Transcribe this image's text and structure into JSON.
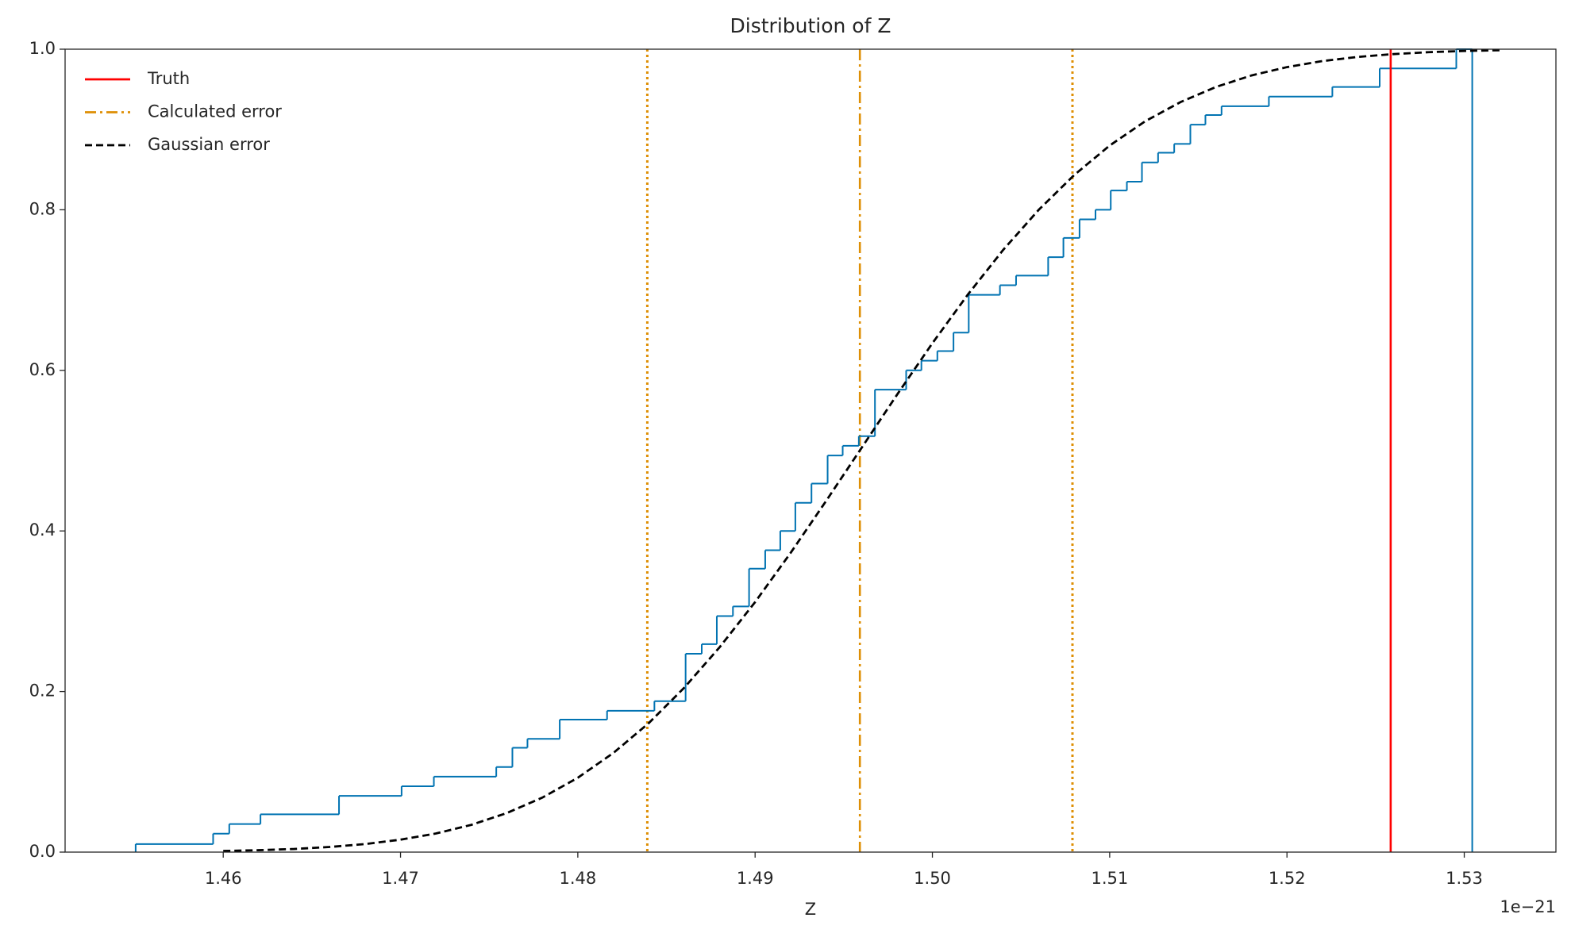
{
  "chart_data": {
    "type": "histogram",
    "title": "Distribution of Z",
    "xlabel": "Z",
    "x_offset_label": "1e−21",
    "xlim": [
      1.45108,
      1.53517
    ],
    "ylim": [
      0,
      1
    ],
    "xticks": [
      1.46,
      1.47,
      1.48,
      1.49,
      {
        "value": 1.5,
        "label": "1.50"
      },
      1.51,
      1.52,
      1.53
    ],
    "yticks": [
      {
        "value": 0,
        "label": "0.0"
      },
      0.2,
      0.4,
      0.6,
      0.8,
      {
        "value": 1,
        "label": "1.0"
      }
    ],
    "legend": "upper left",
    "histogram": {
      "color": "#0173b2",
      "bins": [
        1.45506,
        1.45943,
        1.46034,
        1.4621,
        1.46653,
        1.47006,
        1.47188,
        1.4754,
        1.47631,
        1.47716,
        1.47898,
        1.48165,
        1.48432,
        1.48608,
        1.48699,
        1.48784,
        1.48875,
        1.48966,
        1.49057,
        1.49142,
        1.49227,
        1.49318,
        1.49409,
        1.49494,
        1.49585,
        1.49676,
        1.49852,
        1.49938,
        1.50028,
        1.50119,
        1.50205,
        1.50381,
        1.50472,
        1.50653,
        1.50739,
        1.5083,
        1.5092,
        1.51006,
        1.51097,
        1.51182,
        1.51273,
        1.51364,
        1.51455,
        1.5154,
        1.51631,
        1.51898,
        1.52256,
        1.52523,
        1.52955,
        1.53045
      ],
      "values": [
        0.01,
        0.023,
        0.035,
        0.047,
        0.07,
        0.082,
        0.094,
        0.106,
        0.13,
        0.141,
        0.165,
        0.176,
        0.188,
        0.247,
        0.259,
        0.294,
        0.306,
        0.353,
        0.376,
        0.4,
        0.435,
        0.459,
        0.494,
        0.506,
        0.518,
        0.576,
        0.6,
        0.612,
        0.624,
        0.647,
        0.694,
        0.706,
        0.718,
        0.741,
        0.765,
        0.788,
        0.8,
        0.824,
        0.835,
        0.859,
        0.871,
        0.882,
        0.906,
        0.918,
        0.929,
        0.941,
        0.953,
        0.976,
        1.0
      ]
    },
    "truth": {
      "name": "Truth",
      "color": "#ff0000",
      "style": "solid",
      "x": 1.52585
    },
    "calculated": {
      "name": "Calculated error",
      "color": "#de8f05",
      "style": "dashdot",
      "x": 1.49591,
      "bounds": [
        1.48392,
        1.5079
      ]
    },
    "gaussian": {
      "name": "Gaussian error",
      "color": "#000000",
      "style": "dashed",
      "x": [
        1.46,
        1.462,
        1.464,
        1.466,
        1.468,
        1.47,
        1.472,
        1.474,
        1.476,
        1.478,
        1.48,
        1.482,
        1.484,
        1.486,
        1.488,
        1.49,
        1.492,
        1.494,
        1.496,
        1.498,
        1.5,
        1.502,
        1.504,
        1.506,
        1.508,
        1.51,
        1.512,
        1.514,
        1.516,
        1.518,
        1.52,
        1.522,
        1.524,
        1.526,
        1.528,
        1.53,
        1.532
      ],
      "values": [
        0.0014,
        0.0024,
        0.0039,
        0.0064,
        0.01,
        0.0155,
        0.0232,
        0.034,
        0.0487,
        0.0679,
        0.0926,
        0.1234,
        0.1606,
        0.2047,
        0.2552,
        0.3114,
        0.3726,
        0.4372,
        0.5033,
        0.5695,
        0.6338,
        0.6944,
        0.7502,
        0.8,
        0.8433,
        0.88,
        0.9102,
        0.9342,
        0.953,
        0.9673,
        0.9777,
        0.9852,
        0.9904,
        0.9939,
        0.9963,
        0.9978,
        0.9987
      ]
    }
  }
}
